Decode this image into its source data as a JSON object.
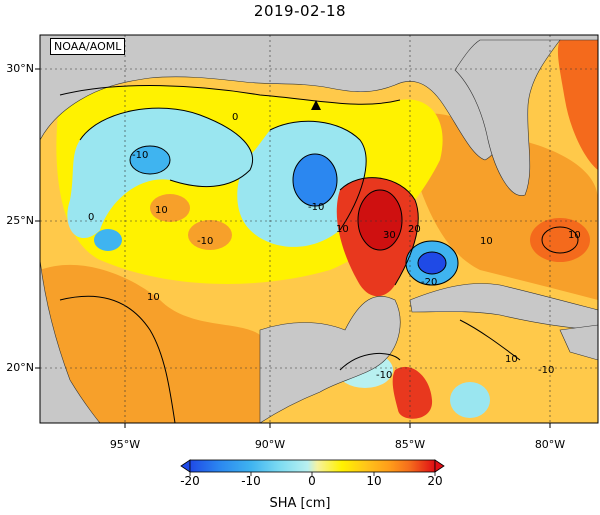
{
  "title": "2019-02-18",
  "credit": "NOAA/AOML",
  "lat_labels": [
    "30°N",
    "25°N",
    "20°N"
  ],
  "lon_labels": [
    "95°W",
    "90°W",
    "85°W",
    "80°W"
  ],
  "contour_labels": [
    "0",
    "-10",
    "10",
    "-10",
    "0",
    "-10",
    "10",
    "30",
    "20",
    "-20",
    "10",
    "-10",
    "10",
    "-10",
    "10",
    "10"
  ],
  "colorbar": {
    "ticks": [
      "-20",
      "-10",
      "0",
      "10",
      "20"
    ],
    "label": "SHA [cm]",
    "colors": [
      "#1f4ae6",
      "#2b87f0",
      "#3fb4f0",
      "#7fdcf2",
      "#b8f0f0",
      "#f6f2a0",
      "#fff200",
      "#ffc41a",
      "#ff9a1a",
      "#f46a1c",
      "#e8381e",
      "#e00d14"
    ]
  }
}
